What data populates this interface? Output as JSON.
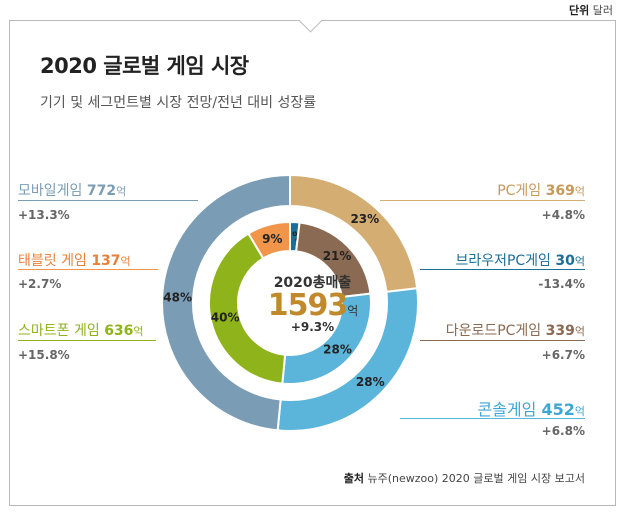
{
  "header": {
    "unit_bold": "단위",
    "unit_text": "달러"
  },
  "title": "2020 글로벌 게임 시장",
  "subtitle": "기기 및 세그먼트별 시장 전망/전년 대비 성장률",
  "center": {
    "label": "2020총매출",
    "total": "1593",
    "total_unit": "억",
    "growth": "+9.3%"
  },
  "source": {
    "bold": "출처",
    "text": "뉴주(newzoo) 2020 글로벌 게임 시장 보고서"
  },
  "chart_data": {
    "type": "pie",
    "outer_ring": [
      {
        "name": "PC게임",
        "value": 369,
        "unit": "억",
        "share": "23%",
        "growth": "+4.8%",
        "color": "#d4ad72"
      },
      {
        "name": "콘솔게임",
        "value": 452,
        "unit": "억",
        "share": "28%",
        "growth": "+6.8%",
        "color": "#5bb4d9"
      },
      {
        "name": "모바일게임",
        "value": 772,
        "unit": "억",
        "share": "48%",
        "growth": "+13.3%",
        "color": "#7a9db5"
      }
    ],
    "inner_ring": [
      {
        "name": "브라우저PC게임",
        "value": 30,
        "unit": "억",
        "share": "2%",
        "growth": "-13.4%",
        "color": "#1d6f98"
      },
      {
        "name": "다운로드PC게임",
        "value": 339,
        "unit": "억",
        "share": "21%",
        "growth": "+6.7%",
        "color": "#8a6a52"
      },
      {
        "name": "콘솔게임",
        "value": 452,
        "unit": "억",
        "share": "28%",
        "growth": "",
        "color": "#5bb4d9"
      },
      {
        "name": "스마트폰 게임",
        "value": 636,
        "unit": "억",
        "share": "40%",
        "growth": "+15.8%",
        "color": "#8fb31b"
      },
      {
        "name": "태블릿 게임",
        "value": 137,
        "unit": "억",
        "share": "9%",
        "growth": "+2.7%",
        "color": "#f0954a"
      }
    ]
  }
}
